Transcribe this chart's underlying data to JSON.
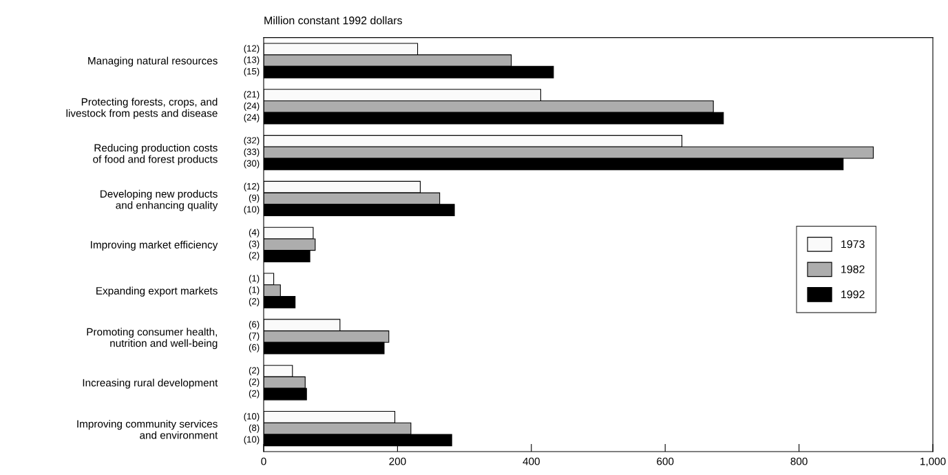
{
  "chart_data": {
    "type": "bar",
    "orientation": "horizontal",
    "title": "Million constant 1992 dollars",
    "categories": [
      "Managing natural resources",
      "Protecting forests, crops, and\nlivestock from pests and disease",
      "Reducing production costs\nof food and forest products",
      "Developing new products\nand enhancing quality",
      "Improving market efficiency",
      "Expanding export markets",
      "Promoting consumer health,\nnutrition and well-being",
      "Increasing rural development",
      "Improving community services\nand environment"
    ],
    "series": [
      {
        "name": "1973",
        "color": "#fafafa",
        "values": [
          230,
          414,
          625,
          234,
          74,
          15,
          114,
          43,
          196
        ]
      },
      {
        "name": "1982",
        "color": "#adadad",
        "values": [
          370,
          672,
          911,
          263,
          77,
          25,
          187,
          62,
          220
        ]
      },
      {
        "name": "1992",
        "color": "#000000",
        "values": [
          433,
          687,
          866,
          285,
          69,
          47,
          180,
          64,
          281
        ]
      }
    ],
    "annotations": [
      "(12)",
      "(13)",
      "(15)",
      "(21)",
      "(24)",
      "(24)",
      "(32)",
      "(33)",
      "(30)",
      "(12)",
      "(9)",
      "(10)",
      "(4)",
      "(3)",
      "(2)",
      "(1)",
      "(1)",
      "(2)",
      "(6)",
      "(7)",
      "(6)",
      "(2)",
      "(2)",
      "(2)",
      "(10)",
      "(8)",
      "(10)"
    ],
    "xlim": [
      0,
      1000
    ],
    "xticks": [
      0,
      200,
      400,
      600,
      800,
      {
        "value": 1000,
        "label": "1,000"
      }
    ],
    "legend": "right"
  }
}
